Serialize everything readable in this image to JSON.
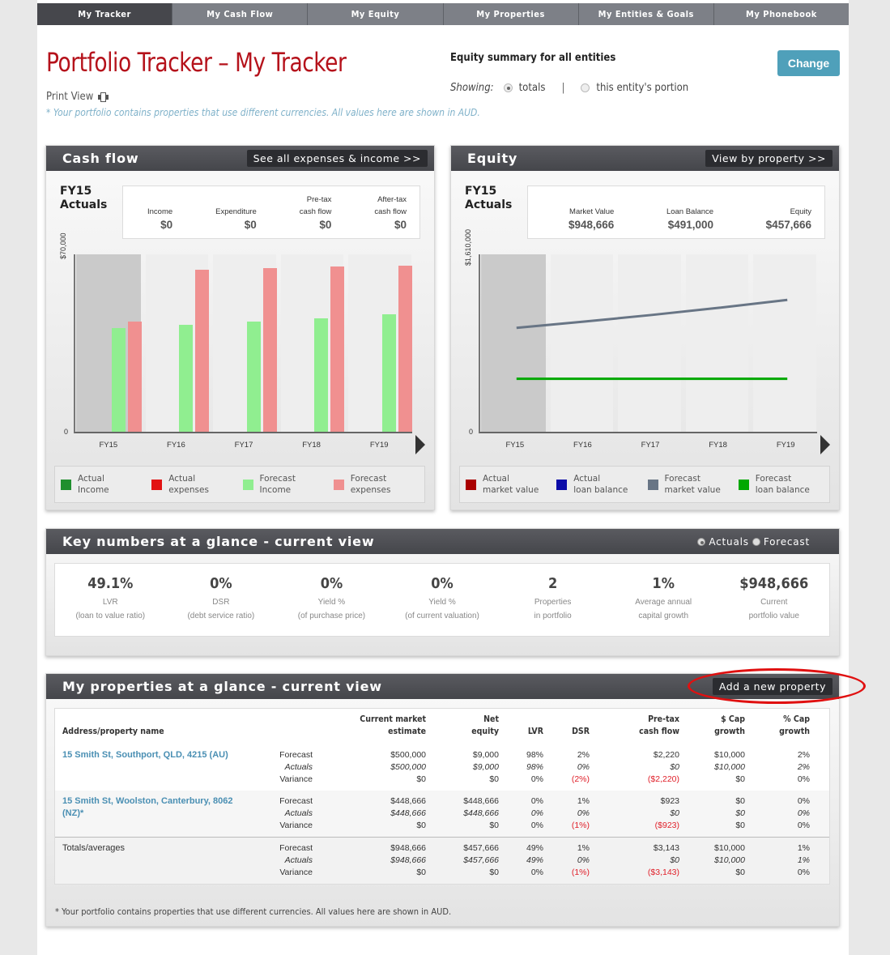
{
  "nav": {
    "tabs": [
      {
        "label": "My Tracker",
        "active": true
      },
      {
        "label": "My Cash Flow",
        "active": false
      },
      {
        "label": "My Equity",
        "active": false
      },
      {
        "label": "My Properties",
        "active": false
      },
      {
        "label": "My Entities & Goals",
        "active": false
      },
      {
        "label": "My Phonebook",
        "active": false
      }
    ]
  },
  "header": {
    "title": "Portfolio Tracker – My Tracker",
    "print_view": "Print View",
    "currency_note": "* Your portfolio contains properties that use different currencies. All values here are shown in AUD.",
    "equity_summary": "Equity summary for all entities",
    "showing_label": "Showing:",
    "showing_options": [
      {
        "label": "totals",
        "selected": true
      },
      {
        "label": "this entity's portion",
        "selected": false
      }
    ],
    "separator": "|",
    "change_button": "Change"
  },
  "cash_flow": {
    "title": "Cash flow",
    "link": "See all expenses & income >>",
    "period_line1": "FY15",
    "period_line2": "Actuals",
    "summary": [
      {
        "label_line1": "",
        "label_line2": "Income",
        "value": "$0"
      },
      {
        "label_line1": "",
        "label_line2": "Expenditure",
        "value": "$0"
      },
      {
        "label_line1": "Pre-tax",
        "label_line2": "cash flow",
        "value": "$0"
      },
      {
        "label_line1": "After-tax",
        "label_line2": "cash flow",
        "value": "$0"
      }
    ],
    "y_max_label": "$70,000",
    "y_zero_label": "0",
    "legend": [
      {
        "line1": "Actual",
        "line2": "Income",
        "color": "#208f2e"
      },
      {
        "line1": "Actual",
        "line2": "expenses",
        "color": "#e21212"
      },
      {
        "line1": "Forecast",
        "line2": "Income",
        "color": "#90ee90"
      },
      {
        "line1": "Forecast",
        "line2": "expenses",
        "color": "#f09090"
      }
    ]
  },
  "equity": {
    "title": "Equity",
    "link": "View by property >>",
    "period_line1": "FY15",
    "period_line2": "Actuals",
    "summary": [
      {
        "label": "Market Value",
        "value": "$948,666"
      },
      {
        "label": "Loan Balance",
        "value": "$491,000"
      },
      {
        "label": "Equity",
        "value": "$457,666"
      }
    ],
    "y_max_label": "$1,610,000",
    "y_zero_label": "0",
    "legend": [
      {
        "line1": "Actual",
        "line2": "market value",
        "color": "#aa0000"
      },
      {
        "line1": "Actual",
        "line2": "loan balance",
        "color": "#0c0ca8"
      },
      {
        "line1": "Forecast",
        "line2": "market value",
        "color": "#687585"
      },
      {
        "line1": "Forecast",
        "line2": "loan balance",
        "color": "#00a800"
      }
    ]
  },
  "chart_data": [
    {
      "type": "bar",
      "title": "Cash flow",
      "categories": [
        "FY15",
        "FY16",
        "FY17",
        "FY18",
        "FY19"
      ],
      "series": [
        {
          "name": "Forecast Income",
          "color": "#90ee90",
          "values": [
            40700,
            41700,
            43000,
            44200,
            45800
          ]
        },
        {
          "name": "Forecast expenses",
          "color": "#f09090",
          "values": [
            43000,
            63300,
            64000,
            64600,
            64900
          ]
        },
        {
          "name": "Actual Income",
          "color": "#208f2e",
          "values": [
            0,
            0,
            0,
            0,
            0
          ]
        },
        {
          "name": "Actual expenses",
          "color": "#e21212",
          "values": [
            0,
            0,
            0,
            0,
            0
          ]
        }
      ],
      "xlabel": "",
      "ylabel": "",
      "ylim": [
        0,
        70000
      ],
      "y_tick_labels": [
        "0",
        "$70,000"
      ],
      "highlighted_category": "FY15",
      "legend_position": "bottom"
    },
    {
      "type": "line",
      "title": "Equity",
      "categories": [
        "FY15",
        "FY16",
        "FY17",
        "FY18",
        "FY19"
      ],
      "series": [
        {
          "name": "Forecast market value",
          "color": "#687585",
          "values": [
            948666,
            1005000,
            1065000,
            1130000,
            1200000
          ]
        },
        {
          "name": "Forecast loan balance",
          "color": "#00a800",
          "values": [
            491000,
            491000,
            491000,
            491000,
            491000
          ]
        }
      ],
      "xlabel": "",
      "ylabel": "",
      "ylim": [
        0,
        1610000
      ],
      "y_tick_labels": [
        "0",
        "$1,610,000"
      ],
      "highlighted_category": "FY15",
      "legend_position": "bottom"
    }
  ],
  "key_numbers": {
    "title": "Key numbers at a glance - current view",
    "view_options": [
      {
        "label": "Actuals",
        "selected": true
      },
      {
        "label": "Forecast",
        "selected": false
      }
    ],
    "items": [
      {
        "value": "49.1%",
        "line1": "LVR",
        "line2": "(loan to value ratio)"
      },
      {
        "value": "0%",
        "line1": "DSR",
        "line2": "(debt service ratio)"
      },
      {
        "value": "0%",
        "line1": "Yield %",
        "line2": "(of purchase price)"
      },
      {
        "value": "0%",
        "line1": "Yield %",
        "line2": "(of current valuation)"
      },
      {
        "value": "2",
        "line1": "Properties",
        "line2": "in portfolio"
      },
      {
        "value": "1%",
        "line1": "Average annual",
        "line2": "capital growth"
      },
      {
        "value": "$948,666",
        "line1": "Current",
        "line2": "portfolio value"
      }
    ]
  },
  "properties": {
    "title": "My properties at a glance - current view",
    "add_button": "Add a new property",
    "columns": [
      {
        "line1": "",
        "line2": "Address/property name"
      },
      {
        "line1": "",
        "line2": ""
      },
      {
        "line1": "Current market",
        "line2": "estimate"
      },
      {
        "line1": "Net",
        "line2": "equity"
      },
      {
        "line1": "",
        "line2": "LVR"
      },
      {
        "line1": "",
        "line2": "DSR"
      },
      {
        "line1": "Pre-tax",
        "line2": "cash flow"
      },
      {
        "line1": "$ Cap",
        "line2": "growth"
      },
      {
        "line1": "% Cap",
        "line2": "growth"
      }
    ],
    "row_labels": [
      "Forecast",
      "Actuals",
      "Variance"
    ],
    "rows": [
      {
        "name": "15 Smith St, Southport, QLD, 4215 (AU)",
        "market": [
          "$500,000",
          "$500,000",
          "$0"
        ],
        "equity": [
          "$9,000",
          "$9,000",
          "$0"
        ],
        "lvr": [
          "98%",
          "98%",
          "0%"
        ],
        "dsr": [
          "2%",
          "0%",
          "(2%)"
        ],
        "cashflow": [
          "$2,220",
          "$0",
          "($2,220)"
        ],
        "cap_dollar": [
          "$10,000",
          "$10,000",
          "$0"
        ],
        "cap_pct": [
          "2%",
          "2%",
          "0%"
        ]
      },
      {
        "name": "15 Smith St, Woolston, Canterbury, 8062 (NZ)*",
        "market": [
          "$448,666",
          "$448,666",
          "$0"
        ],
        "equity": [
          "$448,666",
          "$448,666",
          "$0"
        ],
        "lvr": [
          "0%",
          "0%",
          "0%"
        ],
        "dsr": [
          "1%",
          "0%",
          "(1%)"
        ],
        "cashflow": [
          "$923",
          "$0",
          "($923)"
        ],
        "cap_dollar": [
          "$0",
          "$0",
          "$0"
        ],
        "cap_pct": [
          "0%",
          "0%",
          "0%"
        ]
      }
    ],
    "totals": {
      "name": "Totals/averages",
      "market": [
        "$948,666",
        "$948,666",
        "$0"
      ],
      "equity": [
        "$457,666",
        "$457,666",
        "$0"
      ],
      "lvr": [
        "49%",
        "49%",
        "0%"
      ],
      "dsr": [
        "1%",
        "0%",
        "(1%)"
      ],
      "cashflow": [
        "$3,143",
        "$0",
        "($3,143)"
      ],
      "cap_dollar": [
        "$10,000",
        "$10,000",
        "$0"
      ],
      "cap_pct": [
        "1%",
        "1%",
        "0%"
      ]
    },
    "note": "* Your portfolio contains properties that use different currencies. All values here are shown in AUD."
  }
}
